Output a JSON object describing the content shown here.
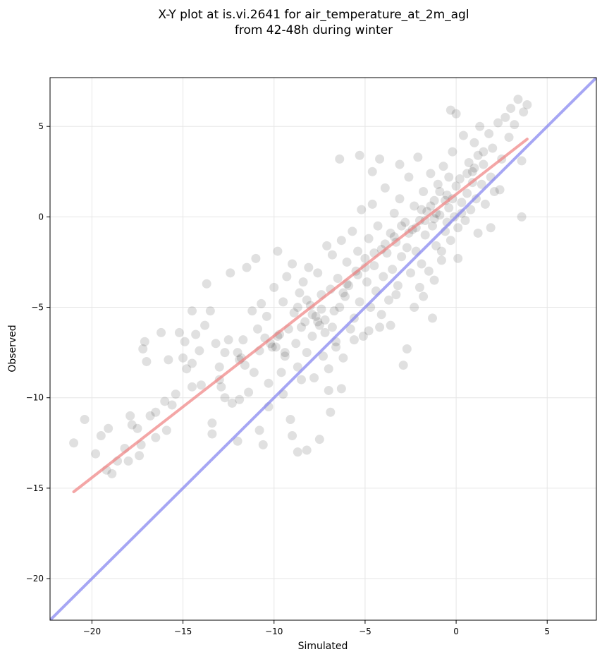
{
  "chart_data": {
    "type": "scatter",
    "title": "X-Y plot at is.vi.2641 for air_temperature_at_2m_agl",
    "subtitle": "from 42-48h during winter",
    "xlabel": "Simulated",
    "ylabel": "Observed",
    "xlim": [
      -22.3,
      7.7
    ],
    "ylim": [
      -22.3,
      7.7
    ],
    "x_ticks": [
      -20,
      -15,
      -10,
      -5,
      0,
      5
    ],
    "y_ticks": [
      -20,
      -15,
      -10,
      -5,
      0,
      5
    ],
    "x_tick_labels": [
      "−20",
      "−15",
      "−10",
      "−5",
      "0",
      "5"
    ],
    "y_tick_labels": [
      "−20",
      "−15",
      "−10",
      "−5",
      "0",
      "5"
    ],
    "grid": true,
    "point_color": "#000000",
    "points": [
      [
        -21.0,
        -12.5
      ],
      [
        -20.4,
        -11.2
      ],
      [
        -19.8,
        -13.1
      ],
      [
        -19.5,
        -12.1
      ],
      [
        -19.1,
        -11.7
      ],
      [
        -18.9,
        -14.2
      ],
      [
        -18.6,
        -13.5
      ],
      [
        -18.2,
        -12.8
      ],
      [
        -17.9,
        -11.0
      ],
      [
        -17.8,
        -11.5
      ],
      [
        -17.5,
        -11.7
      ],
      [
        -17.4,
        -13.2
      ],
      [
        -17.3,
        -12.6
      ],
      [
        -17.2,
        -7.3
      ],
      [
        -17.1,
        -6.9
      ],
      [
        -17.0,
        -8.0
      ],
      [
        -16.8,
        -11.0
      ],
      [
        -16.5,
        -10.8
      ],
      [
        -16.2,
        -6.4
      ],
      [
        -16.0,
        -10.2
      ],
      [
        -15.9,
        -11.8
      ],
      [
        -15.6,
        -10.4
      ],
      [
        -15.4,
        -9.8
      ],
      [
        -15.2,
        -6.4
      ],
      [
        -15.0,
        -7.8
      ],
      [
        -14.9,
        -6.9
      ],
      [
        -14.8,
        -8.4
      ],
      [
        -14.5,
        -5.2
      ],
      [
        -14.3,
        -6.5
      ],
      [
        -14.1,
        -7.4
      ],
      [
        -14.0,
        -9.3
      ],
      [
        -13.8,
        -6.0
      ],
      [
        -13.7,
        -3.7
      ],
      [
        -13.5,
        -5.2
      ],
      [
        -13.4,
        -11.4
      ],
      [
        -13.2,
        -7.0
      ],
      [
        -13.0,
        -8.3
      ],
      [
        -12.9,
        -9.4
      ],
      [
        -12.7,
        -10.0
      ],
      [
        -12.5,
        -6.8
      ],
      [
        -12.4,
        -3.1
      ],
      [
        -12.3,
        -10.3
      ],
      [
        -12.0,
        -7.5
      ],
      [
        -11.9,
        -7.9
      ],
      [
        -11.7,
        -6.8
      ],
      [
        -11.6,
        -8.2
      ],
      [
        -11.5,
        -2.8
      ],
      [
        -11.4,
        -9.7
      ],
      [
        -11.2,
        -5.2
      ],
      [
        -11.1,
        -8.6
      ],
      [
        -11.0,
        -2.3
      ],
      [
        -10.9,
        -6.2
      ],
      [
        -10.8,
        -7.4
      ],
      [
        -10.7,
        -4.8
      ],
      [
        -10.6,
        -12.6
      ],
      [
        -10.5,
        -6.7
      ],
      [
        -10.4,
        -5.5
      ],
      [
        -10.3,
        -9.2
      ],
      [
        -10.2,
        -7.0
      ],
      [
        -10.0,
        -3.9
      ],
      [
        -9.9,
        -7.2
      ],
      [
        -9.8,
        -1.9
      ],
      [
        -9.7,
        -6.5
      ],
      [
        -9.6,
        -8.6
      ],
      [
        -9.5,
        -4.7
      ],
      [
        -9.4,
        -7.7
      ],
      [
        -9.3,
        -3.3
      ],
      [
        -9.2,
        -6.2
      ],
      [
        -9.1,
        -11.2
      ],
      [
        -9.0,
        -2.6
      ],
      [
        -8.9,
        -5.3
      ],
      [
        -8.8,
        -7.0
      ],
      [
        -8.7,
        -8.3
      ],
      [
        -8.6,
        -4.2
      ],
      [
        -8.5,
        -6.1
      ],
      [
        -8.4,
        -3.6
      ],
      [
        -8.3,
        -5.8
      ],
      [
        -8.2,
        -7.5
      ],
      [
        -8.1,
        -2.8
      ],
      [
        -8.0,
        -4.9
      ],
      [
        -7.9,
        -6.6
      ],
      [
        -7.8,
        -8.9
      ],
      [
        -7.7,
        -5.5
      ],
      [
        -7.6,
        -3.1
      ],
      [
        -7.5,
        -6.0
      ],
      [
        -7.4,
        -4.3
      ],
      [
        -7.3,
        -7.7
      ],
      [
        -7.2,
        -5.7
      ],
      [
        -7.1,
        -1.6
      ],
      [
        -7.0,
        -9.6
      ],
      [
        -6.9,
        -4.0
      ],
      [
        -6.8,
        -2.1
      ],
      [
        -6.7,
        -5.2
      ],
      [
        -6.6,
        -6.9
      ],
      [
        -6.5,
        -3.4
      ],
      [
        -6.4,
        -5.0
      ],
      [
        -6.3,
        -1.3
      ],
      [
        -6.2,
        -7.8
      ],
      [
        -6.1,
        -4.4
      ],
      [
        -6.0,
        -2.5
      ],
      [
        -5.9,
        -3.8
      ],
      [
        -5.8,
        -6.2
      ],
      [
        -5.7,
        -0.8
      ],
      [
        -5.6,
        -5.6
      ],
      [
        -5.5,
        -3.0
      ],
      [
        -5.4,
        -1.9
      ],
      [
        -5.3,
        -4.7
      ],
      [
        -5.2,
        0.4
      ],
      [
        -5.1,
        -6.6
      ],
      [
        -5.0,
        -2.3
      ],
      [
        -4.9,
        -3.6
      ],
      [
        -4.8,
        -1.2
      ],
      [
        -4.7,
        -5.0
      ],
      [
        -4.6,
        0.7
      ],
      [
        -4.5,
        -2.7
      ],
      [
        -4.4,
        -4.1
      ],
      [
        -4.3,
        -0.5
      ],
      [
        -4.2,
        -6.1
      ],
      [
        -4.1,
        -1.8
      ],
      [
        -4.0,
        -3.3
      ],
      [
        -3.9,
        1.6
      ],
      [
        -3.8,
        -2.0
      ],
      [
        -3.7,
        -4.6
      ],
      [
        -3.6,
        -0.9
      ],
      [
        -3.5,
        -2.9
      ],
      [
        -3.4,
        0.2
      ],
      [
        -3.3,
        -1.4
      ],
      [
        -3.2,
        -3.8
      ],
      [
        -3.1,
        1.0
      ],
      [
        -3.0,
        -2.2
      ],
      [
        -2.9,
        -8.2
      ],
      [
        -2.8,
        -0.3
      ],
      [
        -2.7,
        -1.7
      ],
      [
        -2.6,
        2.2
      ],
      [
        -2.5,
        -3.1
      ],
      [
        -2.4,
        -0.7
      ],
      [
        -2.3,
        0.6
      ],
      [
        -2.2,
        -1.9
      ],
      [
        -2.1,
        3.3
      ],
      [
        -2.0,
        -0.2
      ],
      [
        -1.9,
        -2.6
      ],
      [
        -1.8,
        1.4
      ],
      [
        -1.7,
        -1.0
      ],
      [
        -1.6,
        0.3
      ],
      [
        -1.5,
        -3.0
      ],
      [
        -1.4,
        2.4
      ],
      [
        -1.3,
        -0.5
      ],
      [
        -1.2,
        0.9
      ],
      [
        -1.1,
        -1.6
      ],
      [
        -1.0,
        1.8
      ],
      [
        -0.9,
        0.1
      ],
      [
        -0.8,
        -2.4
      ],
      [
        -0.7,
        2.8
      ],
      [
        -0.6,
        -0.8
      ],
      [
        -0.5,
        1.2
      ],
      [
        -0.4,
        0.5
      ],
      [
        -0.3,
        -1.3
      ],
      [
        -0.2,
        3.6
      ],
      [
        -0.1,
        0.0
      ],
      [
        0.0,
        1.7
      ],
      [
        0.1,
        -0.6
      ],
      [
        0.2,
        2.1
      ],
      [
        0.3,
        0.8
      ],
      [
        0.4,
        4.5
      ],
      [
        0.5,
        -0.2
      ],
      [
        0.6,
        1.3
      ],
      [
        0.7,
        3.0
      ],
      [
        0.8,
        0.4
      ],
      [
        0.9,
        2.5
      ],
      [
        1.0,
        4.1
      ],
      [
        1.1,
        1.0
      ],
      [
        1.2,
        3.4
      ],
      [
        1.3,
        5.0
      ],
      [
        1.4,
        1.8
      ],
      [
        1.5,
        2.9
      ],
      [
        1.6,
        0.7
      ],
      [
        1.8,
        4.6
      ],
      [
        1.9,
        2.2
      ],
      [
        2.0,
        3.8
      ],
      [
        2.1,
        1.4
      ],
      [
        2.3,
        5.2
      ],
      [
        2.5,
        3.2
      ],
      [
        2.7,
        5.5
      ],
      [
        2.9,
        4.4
      ],
      [
        3.0,
        6.0
      ],
      [
        3.2,
        5.1
      ],
      [
        3.4,
        6.5
      ],
      [
        3.6,
        3.1
      ],
      [
        3.7,
        5.8
      ],
      [
        3.9,
        6.2
      ],
      [
        3.6,
        0.0
      ],
      [
        -6.4,
        3.2
      ],
      [
        -5.3,
        3.4
      ],
      [
        -4.6,
        2.5
      ],
      [
        -4.2,
        3.2
      ],
      [
        -3.1,
        2.9
      ],
      [
        -0.3,
        5.9
      ],
      [
        0.0,
        5.7
      ],
      [
        -1.7,
        -0.2
      ],
      [
        -1.4,
        0.6
      ],
      [
        -1.1,
        0.2
      ],
      [
        -0.6,
        0.9
      ],
      [
        -2.2,
        -0.6
      ],
      [
        -1.9,
        0.4
      ],
      [
        -0.9,
        1.4
      ],
      [
        -0.4,
        2.2
      ],
      [
        -7.6,
        -5.8
      ],
      [
        -7.2,
        -6.4
      ],
      [
        -7.9,
        -5.4
      ],
      [
        -7.4,
        -5.1
      ],
      [
        -6.8,
        -6.1
      ],
      [
        -9.4,
        -7.5
      ],
      [
        -10.1,
        -7.2
      ],
      [
        -8.7,
        -5.0
      ],
      [
        -8.2,
        -4.6
      ],
      [
        -6.0,
        -3.7
      ],
      [
        -5.4,
        -3.2
      ],
      [
        -5.0,
        -2.8
      ],
      [
        -4.5,
        -2.0
      ],
      [
        -3.9,
        -1.5
      ],
      [
        -3.4,
        -1.1
      ],
      [
        -2.6,
        -0.9
      ],
      [
        -1.2,
        -0.1
      ],
      [
        -0.2,
        1.0
      ],
      [
        0.6,
        2.4
      ],
      [
        1.0,
        2.7
      ],
      [
        -12.7,
        -7.5
      ],
      [
        -11.8,
        -7.8
      ],
      [
        -9.8,
        -6.6
      ],
      [
        -6.2,
        -4.2
      ],
      [
        -3.0,
        -0.5
      ],
      [
        -15.8,
        -7.9
      ],
      [
        -14.5,
        -8.1
      ],
      [
        -13.0,
        -9.0
      ],
      [
        -11.9,
        -10.1
      ],
      [
        -10.3,
        -10.5
      ],
      [
        -9.0,
        -12.1
      ],
      [
        -8.2,
        -12.9
      ],
      [
        -7.5,
        -12.3
      ],
      [
        -6.9,
        -10.8
      ],
      [
        -6.3,
        -9.5
      ],
      [
        -8.5,
        -9.0
      ],
      [
        -7.0,
        -8.4
      ],
      [
        -8.7,
        -13.0
      ],
      [
        -9.5,
        -9.8
      ],
      [
        -10.8,
        -11.8
      ],
      [
        -12.0,
        -12.4
      ],
      [
        -13.4,
        -12.0
      ],
      [
        -14.5,
        -9.4
      ],
      [
        -16.5,
        -12.2
      ],
      [
        -18.0,
        -13.5
      ],
      [
        -19.2,
        -14.0
      ],
      [
        -2.3,
        -5.0
      ],
      [
        -1.8,
        -4.4
      ],
      [
        -1.2,
        -3.5
      ],
      [
        -2.0,
        -3.9
      ],
      [
        -3.3,
        -4.3
      ],
      [
        -4.1,
        -5.4
      ],
      [
        -5.6,
        -6.8
      ],
      [
        -6.6,
        -7.2
      ],
      [
        -3.6,
        -6.0
      ],
      [
        -4.8,
        -6.3
      ],
      [
        -2.7,
        -7.3
      ],
      [
        -1.3,
        -5.6
      ],
      [
        0.1,
        -2.3
      ],
      [
        1.2,
        -0.9
      ],
      [
        1.9,
        -0.6
      ],
      [
        2.4,
        1.5
      ],
      [
        -0.8,
        -1.9
      ],
      [
        -0.5,
        -0.3
      ],
      [
        0.3,
        0.2
      ],
      [
        0.9,
        1.9
      ],
      [
        1.5,
        3.6
      ]
    ],
    "fit_line": {
      "color": "#f08080",
      "from": [
        -21.0,
        -15.2
      ],
      "to": [
        3.9,
        4.3
      ]
    },
    "identity_line": {
      "color": "#8080f0",
      "from": [
        -22.3,
        -22.3
      ],
      "to": [
        7.7,
        7.7
      ]
    }
  }
}
